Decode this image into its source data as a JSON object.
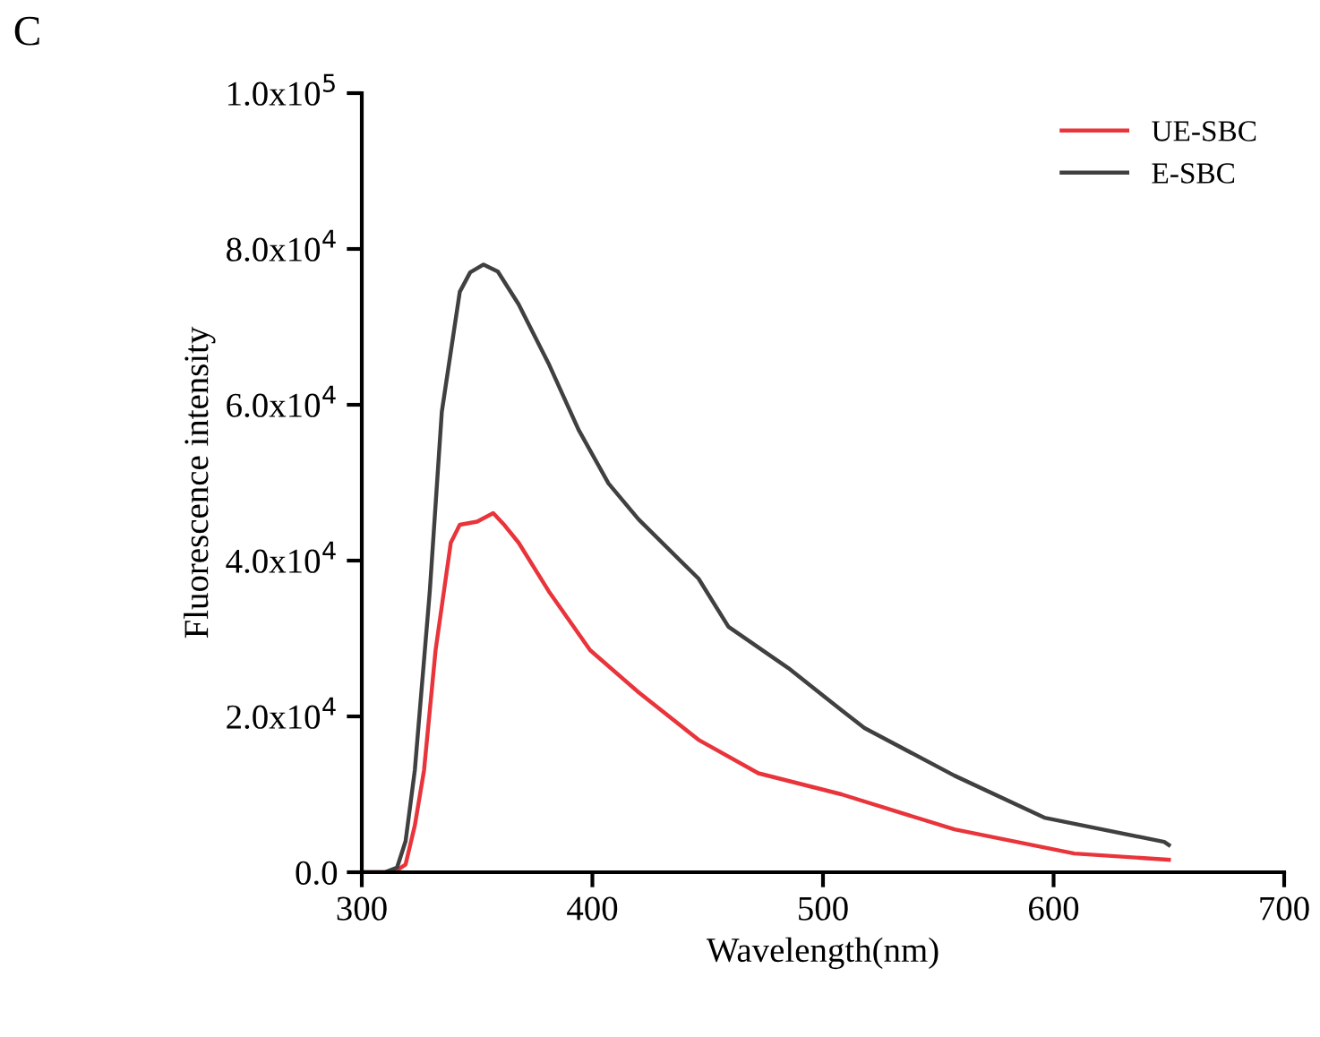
{
  "chart_data": {
    "type": "line",
    "xlabel": "Wavelength(nm)",
    "ylabel": "Fluorescence intensity",
    "annotations": [
      "C"
    ],
    "xlim": [
      300,
      700
    ],
    "xticks": [
      300,
      400,
      500,
      600,
      700
    ],
    "ylim": [
      0,
      100000
    ],
    "yticks": [
      {
        "value": 0,
        "label": "0.0"
      },
      {
        "value": 20000,
        "label": "2.0x10$^{4}$"
      },
      {
        "value": 40000,
        "label": "4.0x10$^{4}$"
      },
      {
        "value": 60000,
        "label": "6.0x10$^{4}$"
      },
      {
        "value": 80000,
        "label": "8.0x10$^{4}$"
      },
      {
        "value": 100000,
        "label": "1.0x10$^{5}$"
      }
    ],
    "legend": "top right",
    "grid": false,
    "marker": "none",
    "line_style": "solid",
    "series": [
      {
        "name": "UE-SBC",
        "color": "#e8343a",
        "x": [
          300,
          310,
          315,
          319,
          323,
          327,
          332,
          338.6,
          342.5,
          350,
          357,
          362,
          368,
          381,
          399,
          420,
          446,
          472,
          508,
          557,
          609,
          650
        ],
        "values": [
          0,
          0,
          200,
          1000,
          6000,
          13100,
          28500,
          42300,
          44600,
          45000,
          46100,
          44500,
          42300,
          36100,
          28500,
          23100,
          17000,
          12700,
          10000,
          5500,
          2400,
          1600
        ]
      },
      {
        "name": "E-SBC",
        "color": "#404040",
        "x": [
          300,
          310,
          315.3,
          319,
          323,
          329.5,
          334.7,
          342.5,
          347,
          352.8,
          359,
          368,
          381,
          394,
          407,
          420,
          446,
          459,
          485,
          508,
          518,
          557,
          596,
          648,
          650
        ],
        "values": [
          0,
          0,
          600,
          4000,
          13100,
          36100,
          59100,
          74500,
          77000,
          78000,
          77100,
          72900,
          65300,
          56800,
          49900,
          45300,
          37700,
          31500,
          26200,
          20800,
          18500,
          12400,
          7000,
          3900,
          3500
        ]
      }
    ]
  }
}
